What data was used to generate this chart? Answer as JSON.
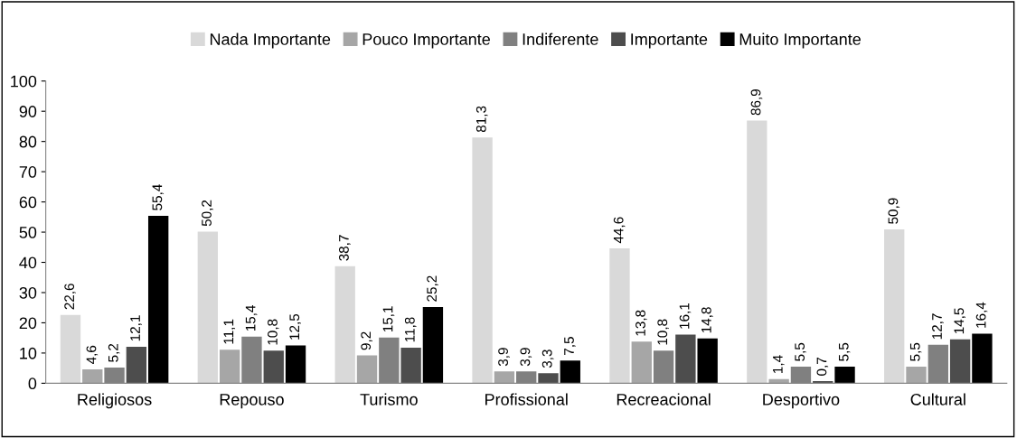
{
  "chart_data": {
    "type": "bar",
    "categories": [
      "Religiosos",
      "Repouso",
      "Turismo",
      "Profissional",
      "Recreacional",
      "Desportivo",
      "Cultural"
    ],
    "ylim": [
      0,
      100
    ],
    "yticks": [
      0,
      10,
      20,
      30,
      40,
      50,
      60,
      70,
      80,
      90,
      100
    ],
    "grid": false,
    "legend": "top",
    "series": [
      {
        "name": "Nada Importante",
        "color": "#d9d9d9",
        "values": [
          22.6,
          50.2,
          38.7,
          81.3,
          44.6,
          86.9,
          50.9
        ],
        "value_labels": [
          "22,6",
          "50,2",
          "38,7",
          "81,3",
          "44,6",
          "86,9",
          "50,9"
        ]
      },
      {
        "name": "Pouco Importante",
        "color": "#a6a6a6",
        "values": [
          4.6,
          11.1,
          9.2,
          3.9,
          13.8,
          1.4,
          5.5
        ],
        "value_labels": [
          "4,6",
          "11,1",
          "9,2",
          "3,9",
          "13,8",
          "1,4",
          "5,5"
        ]
      },
      {
        "name": "Indiferente",
        "color": "#808080",
        "values": [
          5.2,
          15.4,
          15.1,
          3.9,
          10.8,
          5.5,
          12.7
        ],
        "value_labels": [
          "5,2",
          "15,4",
          "15,1",
          "3,9",
          "10,8",
          "5,5",
          "12,7"
        ]
      },
      {
        "name": "Importante",
        "color": "#4d4d4d",
        "values": [
          12.1,
          10.8,
          11.8,
          3.3,
          16.1,
          0.7,
          14.5
        ],
        "value_labels": [
          "12,1",
          "10,8",
          "11,8",
          "3,3",
          "16,1",
          "0,7",
          "14,5"
        ]
      },
      {
        "name": "Muito Importante",
        "color": "#000000",
        "values": [
          55.4,
          12.5,
          25.2,
          7.5,
          14.8,
          5.5,
          16.4
        ],
        "value_labels": [
          "55,4",
          "12,5",
          "25,2",
          "7,5",
          "14,8",
          "5,5",
          "16,4"
        ]
      }
    ]
  }
}
